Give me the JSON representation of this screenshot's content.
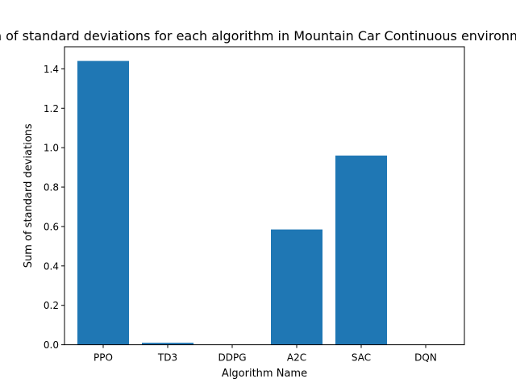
{
  "chart_data": {
    "type": "bar",
    "title": "Sum of standard deviations for each algorithm in Mountain Car Continuous environment",
    "xlabel": "Algorithm Name",
    "ylabel": "Sum of standard deviations",
    "categories": [
      "PPO",
      "TD3",
      "DDPG",
      "A2C",
      "SAC",
      "DQN"
    ],
    "values": [
      1.44,
      0.01,
      0.0,
      0.585,
      0.96,
      0.0
    ],
    "ylim": [
      0,
      1.512
    ],
    "yticks": [
      0.0,
      0.2,
      0.4,
      0.6,
      0.8,
      1.0,
      1.2,
      1.4
    ],
    "ytick_labels": [
      "0.0",
      "0.2",
      "0.4",
      "0.6",
      "0.8",
      "1.0",
      "1.2",
      "1.4"
    ],
    "bar_color": "#1f77b4",
    "grid": false,
    "legend": "none"
  }
}
